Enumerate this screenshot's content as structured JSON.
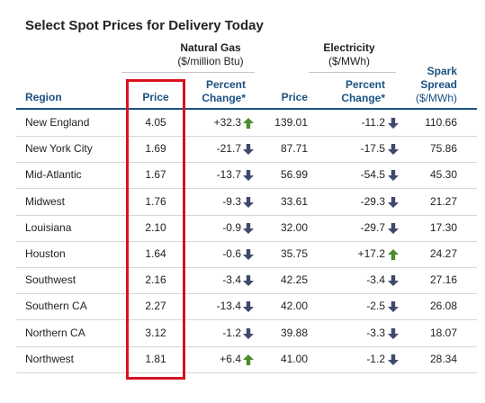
{
  "title": "Select Spot Prices for Delivery Today",
  "groups": {
    "natural_gas": {
      "name": "Natural Gas",
      "unit": "($/million Btu)"
    },
    "electricity": {
      "name": "Electricity",
      "unit": "($/MWh)"
    }
  },
  "headers": {
    "region": "Region",
    "price": "Price",
    "pct_change_line1": "Percent",
    "pct_change_line2": "Change*",
    "elec_price": "Price",
    "spark_line1": "Spark",
    "spark_line2": "Spread",
    "spark_unit": "($/MWh)"
  },
  "colors": {
    "header_blue": "#1a5282",
    "up_arrow": "#4a8c2a",
    "down_arrow": "#3d4a6b",
    "highlight_box": "#d9121f"
  },
  "rows": [
    {
      "region": "New England",
      "gas_price": "4.05",
      "gas_change": "+32.3",
      "gas_dir": "up",
      "elec_price": "139.01",
      "elec_change": "-11.2",
      "elec_dir": "down",
      "spark": "110.66"
    },
    {
      "region": "New York City",
      "gas_price": "1.69",
      "gas_change": "-21.7",
      "gas_dir": "down",
      "elec_price": "87.71",
      "elec_change": "-17.5",
      "elec_dir": "down",
      "spark": "75.86"
    },
    {
      "region": "Mid-Atlantic",
      "gas_price": "1.67",
      "gas_change": "-13.7",
      "gas_dir": "down",
      "elec_price": "56.99",
      "elec_change": "-54.5",
      "elec_dir": "down",
      "spark": "45.30"
    },
    {
      "region": "Midwest",
      "gas_price": "1.76",
      "gas_change": "-9.3",
      "gas_dir": "down",
      "elec_price": "33.61",
      "elec_change": "-29.3",
      "elec_dir": "down",
      "spark": "21.27"
    },
    {
      "region": "Louisiana",
      "gas_price": "2.10",
      "gas_change": "-0.9",
      "gas_dir": "down",
      "elec_price": "32.00",
      "elec_change": "-29.7",
      "elec_dir": "down",
      "spark": "17.30"
    },
    {
      "region": "Houston",
      "gas_price": "1.64",
      "gas_change": "-0.6",
      "gas_dir": "down",
      "elec_price": "35.75",
      "elec_change": "+17.2",
      "elec_dir": "up",
      "spark": "24.27"
    },
    {
      "region": "Southwest",
      "gas_price": "2.16",
      "gas_change": "-3.4",
      "gas_dir": "down",
      "elec_price": "42.25",
      "elec_change": "-3.4",
      "elec_dir": "down",
      "spark": "27.16"
    },
    {
      "region": "Southern CA",
      "gas_price": "2.27",
      "gas_change": "-13.4",
      "gas_dir": "down",
      "elec_price": "42.00",
      "elec_change": "-2.5",
      "elec_dir": "down",
      "spark": "26.08"
    },
    {
      "region": "Northern CA",
      "gas_price": "3.12",
      "gas_change": "-1.2",
      "gas_dir": "down",
      "elec_price": "39.88",
      "elec_change": "-3.3",
      "elec_dir": "down",
      "spark": "18.07"
    },
    {
      "region": "Northwest",
      "gas_price": "1.81",
      "gas_change": "+6.4",
      "gas_dir": "up",
      "elec_price": "41.00",
      "elec_change": "-1.2",
      "elec_dir": "down",
      "spark": "28.34"
    }
  ]
}
